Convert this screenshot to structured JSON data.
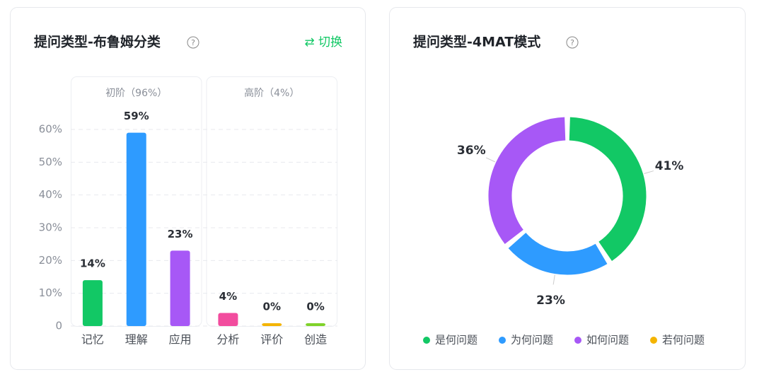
{
  "chart_data": [
    {
      "type": "bar",
      "title": "提问类型-布鲁姆分类",
      "toggle": "⇄ 切换",
      "groups": [
        "初阶（96%）",
        "高阶（4%）"
      ],
      "categories": [
        "记忆",
        "理解",
        "应用",
        "分析",
        "评价",
        "创造"
      ],
      "values": [
        14,
        59,
        23,
        4,
        0,
        0
      ],
      "value_labels": [
        "14%",
        "59%",
        "23%",
        "4%",
        "0%",
        "0%"
      ],
      "colors": [
        "#12c865",
        "#2e9bff",
        "#a758f6",
        "#f24c9e",
        "#f4b400",
        "#7fd22a"
      ],
      "ylim": [
        0,
        60
      ],
      "yticks": [
        0,
        {
          "value": 10,
          "label": "10%"
        },
        {
          "value": 20,
          "label": "20%"
        },
        {
          "value": 30,
          "label": "30%"
        },
        {
          "value": 40,
          "label": "40%"
        },
        {
          "value": 50,
          "label": "50%"
        },
        {
          "value": 60,
          "label": "60%"
        }
      ],
      "grid": true
    },
    {
      "type": "donut",
      "title": "提问类型-4MAT模式",
      "categories": [
        "是何问题",
        "为何问题",
        "如何问题",
        "若何问题"
      ],
      "values": [
        41,
        23,
        36,
        0
      ],
      "value_labels": [
        "41%",
        "23%",
        "36%",
        null
      ],
      "colors": [
        "#12c865",
        "#2e9bff",
        "#a758f6",
        "#f4b400"
      ],
      "legend": "bottom"
    }
  ]
}
